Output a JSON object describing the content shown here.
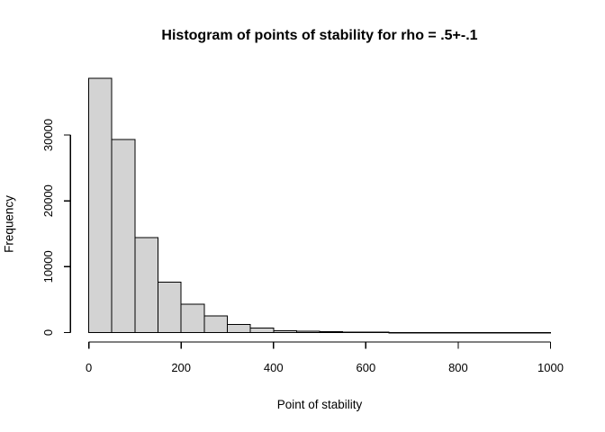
{
  "chart_data": {
    "type": "bar",
    "subtype": "histogram",
    "title": "Histogram of points of stability for rho = .5+-.1",
    "xlabel": "Point of stability",
    "ylabel": "Frequency",
    "bin_edges": [
      0,
      50,
      100,
      150,
      200,
      250,
      300,
      350,
      400,
      450,
      500,
      550,
      600,
      650,
      700,
      750,
      800,
      850,
      900,
      950,
      1000
    ],
    "values": [
      38600,
      29300,
      14400,
      7650,
      4300,
      2550,
      1250,
      650,
      300,
      180,
      110,
      70,
      45,
      30,
      20,
      14,
      9,
      6,
      4,
      2
    ],
    "x_ticks": [
      0,
      200,
      400,
      600,
      800,
      1000
    ],
    "y_ticks": [
      0,
      10000,
      20000,
      30000
    ],
    "xlim": [
      0,
      1000
    ],
    "ylim": [
      0,
      38600
    ],
    "grid": false,
    "legend": null,
    "bar_fill": "#d3d3d3",
    "bar_stroke": "#000000",
    "axis_color": "#000000",
    "background": "#ffffff"
  }
}
